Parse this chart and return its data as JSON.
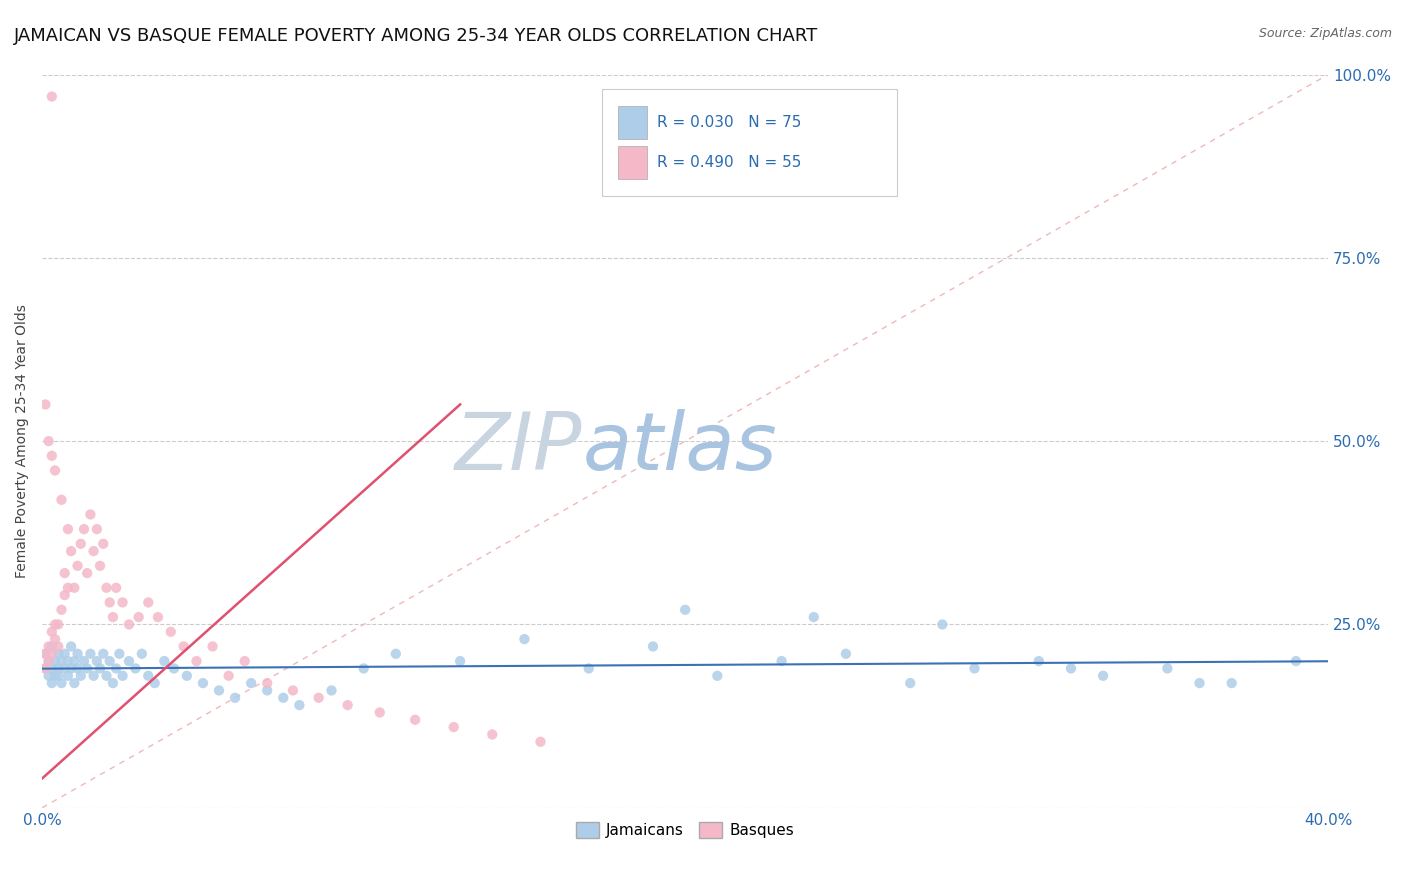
{
  "title": "JAMAICAN VS BASQUE FEMALE POVERTY AMONG 25-34 YEAR OLDS CORRELATION CHART",
  "source": "Source: ZipAtlas.com",
  "ylabel": "Female Poverty Among 25-34 Year Olds",
  "xlim": [
    0.0,
    0.4
  ],
  "ylim": [
    0.0,
    1.0
  ],
  "blue_color": "#aecde8",
  "pink_color": "#f4b8c8",
  "blue_line_color": "#3a72b5",
  "pink_line_color": "#e05070",
  "diagonal_color": "#f0b8b8",
  "grid_color": "#cccccc",
  "watermark_text": "ZIPatlas",
  "watermark_color": "#ccdaeb",
  "title_fontsize": 13,
  "label_fontsize": 10,
  "tick_fontsize": 11,
  "background_color": "#ffffff",
  "legend_text_color": "#2b6cb0",
  "right_tick_labels": [
    "",
    "25.0%",
    "50.0%",
    "75.0%",
    "100.0%"
  ],
  "jamaicans_x": [
    0.001,
    0.001,
    0.002,
    0.002,
    0.003,
    0.003,
    0.003,
    0.004,
    0.004,
    0.005,
    0.005,
    0.005,
    0.006,
    0.006,
    0.007,
    0.007,
    0.008,
    0.008,
    0.009,
    0.009,
    0.01,
    0.01,
    0.011,
    0.011,
    0.012,
    0.013,
    0.014,
    0.015,
    0.016,
    0.017,
    0.018,
    0.019,
    0.02,
    0.021,
    0.022,
    0.023,
    0.024,
    0.025,
    0.027,
    0.029,
    0.031,
    0.033,
    0.035,
    0.038,
    0.041,
    0.045,
    0.05,
    0.055,
    0.06,
    0.065,
    0.07,
    0.075,
    0.08,
    0.09,
    0.1,
    0.11,
    0.13,
    0.15,
    0.17,
    0.19,
    0.21,
    0.23,
    0.25,
    0.27,
    0.29,
    0.31,
    0.33,
    0.35,
    0.37,
    0.39,
    0.2,
    0.24,
    0.28,
    0.32,
    0.36
  ],
  "jamaicans_y": [
    0.19,
    0.21,
    0.18,
    0.2,
    0.19,
    0.22,
    0.17,
    0.2,
    0.18,
    0.19,
    0.21,
    0.18,
    0.2,
    0.17,
    0.19,
    0.21,
    0.18,
    0.2,
    0.19,
    0.22,
    0.17,
    0.2,
    0.19,
    0.21,
    0.18,
    0.2,
    0.19,
    0.21,
    0.18,
    0.2,
    0.19,
    0.21,
    0.18,
    0.2,
    0.17,
    0.19,
    0.21,
    0.18,
    0.2,
    0.19,
    0.21,
    0.18,
    0.17,
    0.2,
    0.19,
    0.18,
    0.17,
    0.16,
    0.15,
    0.17,
    0.16,
    0.15,
    0.14,
    0.16,
    0.19,
    0.21,
    0.2,
    0.23,
    0.19,
    0.22,
    0.18,
    0.2,
    0.21,
    0.17,
    0.19,
    0.2,
    0.18,
    0.19,
    0.17,
    0.2,
    0.27,
    0.26,
    0.25,
    0.19,
    0.17
  ],
  "basques_x": [
    0.001,
    0.001,
    0.002,
    0.002,
    0.003,
    0.003,
    0.004,
    0.004,
    0.005,
    0.005,
    0.006,
    0.007,
    0.007,
    0.008,
    0.009,
    0.01,
    0.011,
    0.012,
    0.013,
    0.014,
    0.015,
    0.016,
    0.017,
    0.018,
    0.019,
    0.02,
    0.021,
    0.022,
    0.023,
    0.025,
    0.027,
    0.03,
    0.033,
    0.036,
    0.04,
    0.044,
    0.048,
    0.053,
    0.058,
    0.063,
    0.07,
    0.078,
    0.086,
    0.095,
    0.105,
    0.116,
    0.128,
    0.14,
    0.155,
    0.001,
    0.002,
    0.003,
    0.004,
    0.006,
    0.008
  ],
  "basques_y": [
    0.19,
    0.21,
    0.2,
    0.22,
    0.24,
    0.21,
    0.25,
    0.23,
    0.25,
    0.22,
    0.27,
    0.29,
    0.32,
    0.3,
    0.35,
    0.3,
    0.33,
    0.36,
    0.38,
    0.32,
    0.4,
    0.35,
    0.38,
    0.33,
    0.36,
    0.3,
    0.28,
    0.26,
    0.3,
    0.28,
    0.25,
    0.26,
    0.28,
    0.26,
    0.24,
    0.22,
    0.2,
    0.22,
    0.18,
    0.2,
    0.17,
    0.16,
    0.15,
    0.14,
    0.13,
    0.12,
    0.11,
    0.1,
    0.09,
    0.55,
    0.5,
    0.48,
    0.46,
    0.42,
    0.38
  ]
}
